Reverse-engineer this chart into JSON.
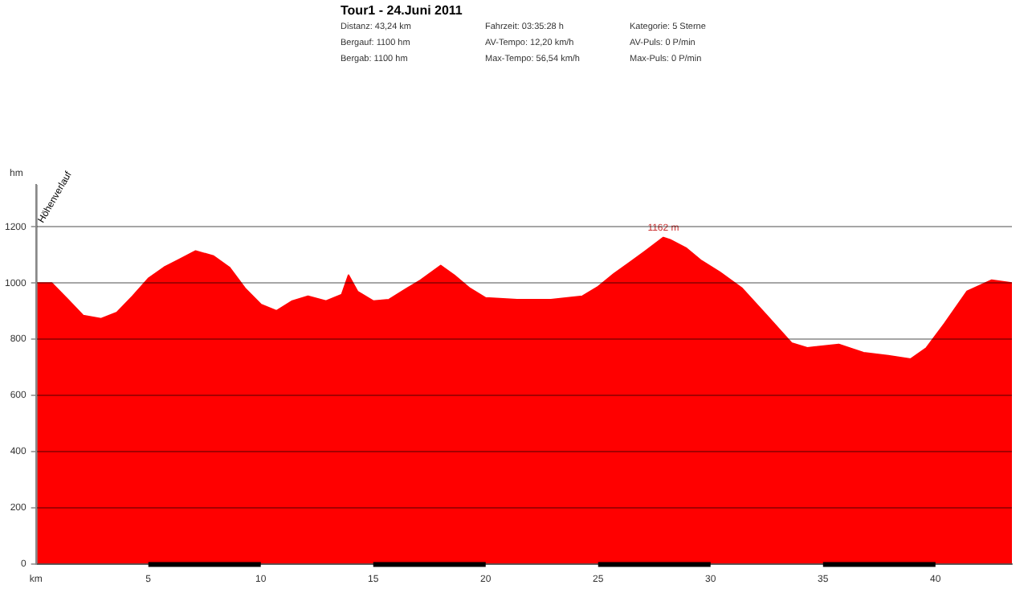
{
  "chart_data": {
    "type": "area",
    "title": "Tour1 - 24.Juni 2011",
    "ylabel": "hm",
    "annotations": [
      "Höhenverlauf",
      "Distanz: 43,24 km",
      "Fahrzeit: 03:35:28 h",
      "Kategorie: 5 Sterne",
      "Bergauf: 1100 hm",
      "AV-Tempo: 12,20 km/h",
      "AV-Puls: 0 P/min",
      "Bergab: 1100 hm",
      "Max-Tempo: 56,54 km/h",
      "Max-Puls: 0 P/min",
      {
        "text": "1162 m",
        "x": 27.9,
        "y": 1162
      }
    ],
    "x": [
      0,
      0.7,
      1.4,
      2.1,
      2.9,
      3.6,
      4.3,
      5,
      5.7,
      6.4,
      7.1,
      7.9,
      8.6,
      9.3,
      10,
      10.7,
      11.4,
      12.1,
      12.9,
      13.6,
      13.9,
      14.3,
      15,
      15.7,
      16.4,
      17.1,
      18,
      18.6,
      19.3,
      20,
      21.4,
      22.9,
      24.3,
      25,
      25.7,
      26.4,
      27.1,
      27.9,
      28.2,
      28.9,
      29.6,
      30.4,
      31.4,
      32.5,
      33.6,
      34.3,
      35.7,
      36.8,
      37.9,
      38.9,
      39.6,
      40.4,
      41.4,
      42.5,
      43.4
    ],
    "series": [
      {
        "color": "#ff0000",
        "values": [
          1000,
          1000,
          943,
          884,
          873,
          895,
          953,
          1016,
          1056,
          1085,
          1114,
          1096,
          1056,
          981,
          924,
          901,
          936,
          953,
          936,
          959,
          1028,
          970,
          936,
          941,
          976,
          1010,
          1062,
          1028,
          981,
          947,
          941,
          941,
          953,
          987,
          1033,
          1073,
          1114,
          1162,
          1154,
          1125,
          1079,
          1039,
          981,
          884,
          786,
          769,
          781,
          752,
          741,
          729,
          769,
          855,
          970,
          1010,
          1000
        ]
      }
    ],
    "xlim": [
      0,
      43.4
    ],
    "xticks": [
      {
        "value": 0,
        "label": "km"
      },
      5,
      10,
      15,
      20,
      25,
      30,
      35,
      40
    ],
    "ylim": [
      0,
      1350
    ],
    "yticks": [
      0,
      200,
      400,
      600,
      800,
      1000,
      1200
    ],
    "grid": "y",
    "legend": false,
    "marker": "none"
  }
}
